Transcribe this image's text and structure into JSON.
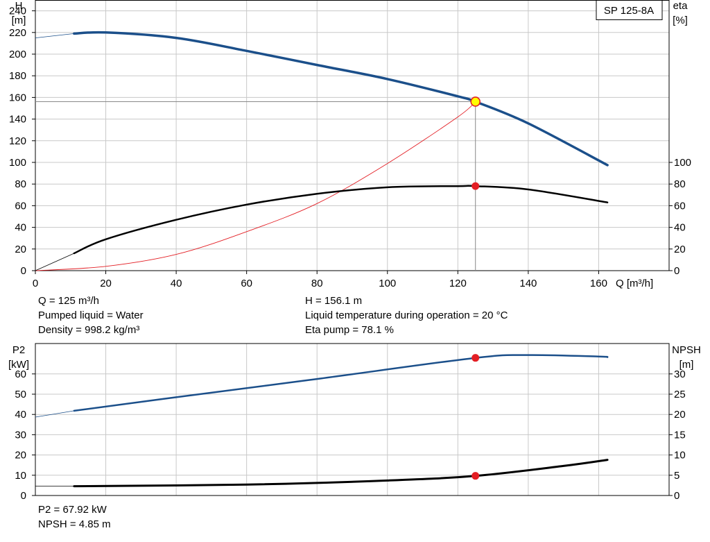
{
  "model_label": "SP 125-8A",
  "info_top": {
    "q": "Q = 125 m³/h",
    "liquid": "Pumped liquid = Water",
    "density": "Density = 998.2 kg/m³",
    "h": "H = 156.1 m",
    "temperature": "Liquid temperature during operation = 20 °C",
    "eta": "Eta pump = 78.1 %"
  },
  "info_bottom": {
    "p2": "P2 = 67.92 kW",
    "npsh": "NPSH = 4.85 m"
  },
  "chart_data": [
    {
      "type": "line",
      "panel": "top",
      "xlabel": "Q [m³/h]",
      "ylabel": [
        "H",
        "[m]"
      ],
      "y2label": [
        "eta",
        "[%]"
      ],
      "xlim": [
        0,
        180
      ],
      "xticks": [
        0,
        20,
        40,
        60,
        80,
        100,
        120,
        140,
        160
      ],
      "ylim": [
        0,
        250
      ],
      "yticks": [
        0,
        20,
        40,
        60,
        80,
        100,
        120,
        140,
        160,
        180,
        200,
        220,
        240
      ],
      "y2ticks": [
        0,
        20,
        40,
        60,
        80,
        100
      ],
      "grid": true,
      "colors": {
        "head": "#1b4f8a",
        "eta": "#000000",
        "system": "#e31e24",
        "duty_fill": "#ffff00",
        "marker": "#e31e24",
        "grid": "#c8c8c8"
      },
      "series": [
        {
          "key": "head",
          "x": [
            11,
            20,
            40,
            60,
            80,
            100,
            120,
            125,
            140,
            162.5
          ],
          "y": [
            219,
            220,
            215,
            203,
            190,
            177,
            161,
            156.1,
            136,
            97.5
          ],
          "extension": {
            "x": [
              0,
              11
            ],
            "y": [
              215,
              219
            ]
          }
        },
        {
          "key": "eta",
          "x": [
            11,
            20,
            40,
            60,
            80,
            100,
            120,
            125,
            140,
            162.5
          ],
          "y": [
            16,
            29,
            47,
            61,
            71,
            77,
            78.1,
            78.1,
            75,
            63
          ],
          "extension": {
            "x": [
              0,
              11
            ],
            "y": [
              0,
              16
            ]
          }
        },
        {
          "key": "system",
          "x": [
            0,
            20,
            40,
            60,
            80,
            100,
            120,
            125
          ],
          "y": [
            0,
            4,
            15,
            36,
            62,
            99,
            142,
            156.1
          ]
        }
      ],
      "duty_point": {
        "x": 125,
        "y": 156.1
      },
      "eta_point": {
        "x": 125,
        "y": 78.1
      }
    },
    {
      "type": "line",
      "panel": "bottom",
      "ylabel": [
        "P2",
        "[kW]"
      ],
      "y2label": [
        "NPSH",
        "[m]"
      ],
      "xlim": [
        0,
        180
      ],
      "ylim": [
        0,
        75
      ],
      "yticks": [
        0,
        10,
        20,
        30,
        40,
        50,
        60
      ],
      "y2lim": [
        0,
        37.5
      ],
      "y2ticks": [
        0,
        5,
        10,
        15,
        20,
        25,
        30
      ],
      "grid": true,
      "colors": {
        "p2": "#1b4f8a",
        "npsh": "#000000",
        "marker": "#e31e24"
      },
      "series": [
        {
          "key": "p2",
          "x": [
            11,
            40,
            80,
            125,
            140,
            160,
            162.5
          ],
          "y": [
            41.8,
            48.5,
            57.5,
            67.92,
            69.3,
            68.6,
            68.3
          ],
          "extension": {
            "x": [
              0,
              11
            ],
            "y": [
              38.7,
              41.8
            ]
          }
        },
        {
          "key": "npsh",
          "x": [
            11,
            60,
            100,
            125,
            150,
            162.5
          ],
          "y": [
            2.3,
            2.7,
            3.7,
            4.85,
            7.3,
            8.8
          ],
          "extension": {
            "x": [
              0,
              11
            ],
            "y": [
              2.3,
              2.3
            ]
          }
        }
      ],
      "p2_point": {
        "x": 125,
        "y": 67.92
      },
      "npsh_point": {
        "x": 125,
        "y": 4.85
      }
    }
  ]
}
